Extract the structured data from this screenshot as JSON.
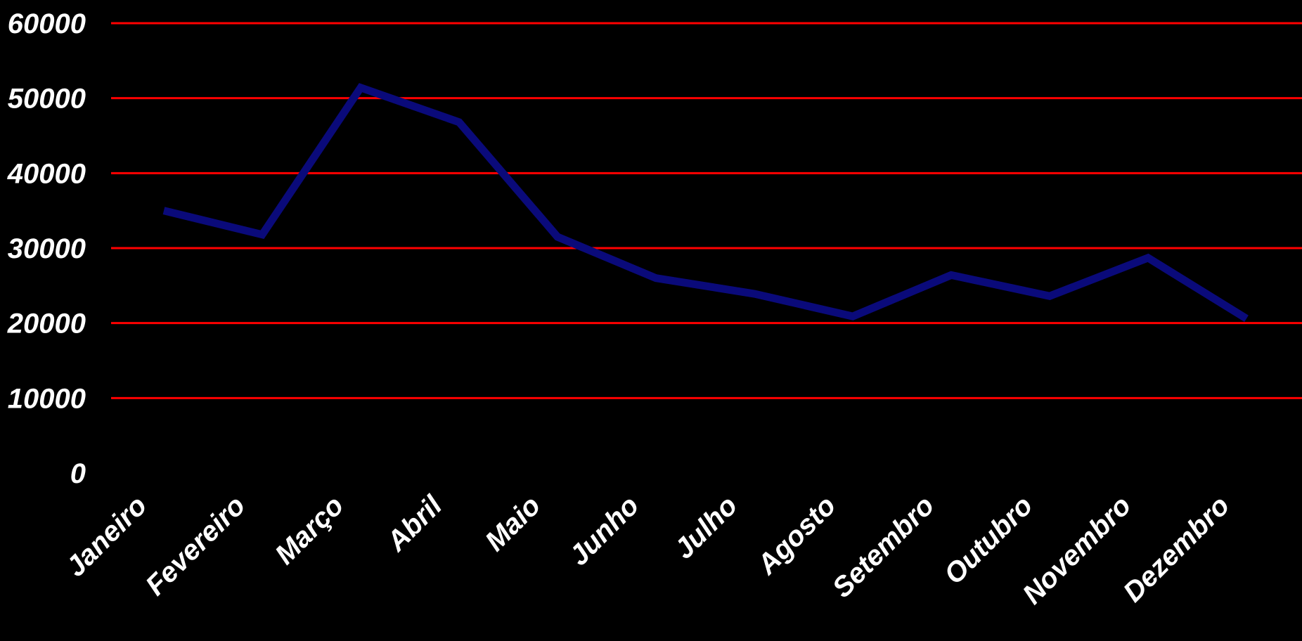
{
  "colors": {
    "background": "#000000",
    "gridline": "#ff0000",
    "series_line": "#0a0a7a",
    "text": "#ffffff"
  },
  "chart_data": {
    "type": "line",
    "title": "",
    "xlabel": "",
    "ylabel": "",
    "categories": [
      "Janeiro",
      "Fevereiro",
      "Março",
      "Abril",
      "Maio",
      "Junho",
      "Julho",
      "Agosto",
      "Setembro",
      "Outubro",
      "Novembro",
      "Dezembro"
    ],
    "series": [
      {
        "values": [
          35000,
          31800,
          51400,
          46800,
          31500,
          26000,
          23900,
          20900,
          26400,
          23600,
          28700,
          20600
        ]
      }
    ],
    "ylim": [
      0,
      60000
    ],
    "yticks": [
      "0",
      "10000",
      "20000",
      "30000",
      "40000",
      "50000",
      "60000"
    ],
    "grid": true,
    "legend": "none"
  }
}
